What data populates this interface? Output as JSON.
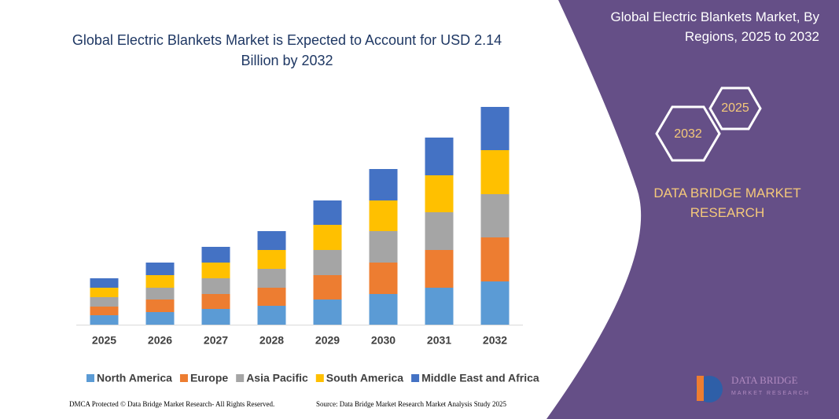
{
  "chart_data": {
    "type": "bar",
    "stacked": true,
    "title": "Global Electric Blankets Market is Expected to Account for USD 2.14 Billion by 2032",
    "categories": [
      "2025",
      "2026",
      "2027",
      "2028",
      "2029",
      "2030",
      "2031",
      "2032"
    ],
    "series": [
      {
        "name": "North America",
        "color": "#5b9bd5",
        "values": [
          12,
          16,
          20,
          24,
          32,
          39,
          47,
          55
        ]
      },
      {
        "name": "Europe",
        "color": "#ed7d31",
        "values": [
          11,
          16,
          19,
          23,
          31,
          40,
          48,
          56
        ]
      },
      {
        "name": "Asia Pacific",
        "color": "#a5a5a5",
        "values": [
          12,
          15,
          20,
          24,
          32,
          40,
          48,
          55
        ]
      },
      {
        "name": "South America",
        "color": "#ffc000",
        "values": [
          12,
          16,
          20,
          24,
          32,
          39,
          47,
          56
        ]
      },
      {
        "name": "Middle East and Africa",
        "color": "#4472c4",
        "values": [
          12,
          16,
          20,
          24,
          31,
          40,
          48,
          55
        ]
      }
    ],
    "ylim": [
      0,
      300
    ]
  },
  "panel": {
    "title": "Global Electric Blankets Market, By Regions, 2025 to 2032",
    "hex_small": "2025",
    "hex_large": "2032",
    "brand": "DATA BRIDGE MARKET RESEARCH",
    "logo_top": "DATA BRIDGE",
    "logo_bottom": "MARKET RESEARCH"
  },
  "footer": {
    "dmca": "DMCA Protected © Data Bridge Market Research- All Rights Reserved.",
    "source": "Source: Data Bridge Market Research Market Analysis Study 2025"
  }
}
